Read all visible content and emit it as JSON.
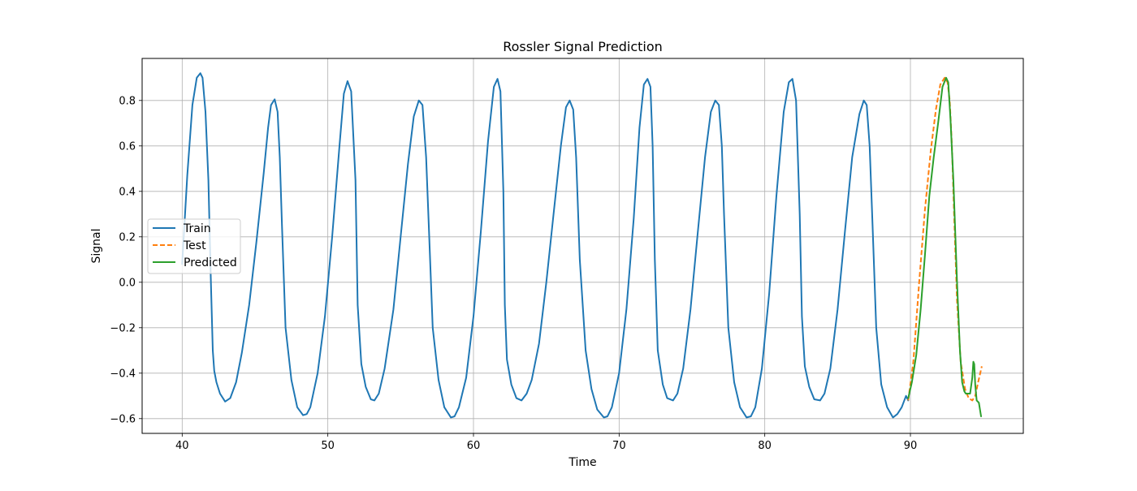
{
  "chart_data": {
    "type": "line",
    "title": "Rossler Signal Prediction",
    "xlabel": "Time",
    "ylabel": "Signal",
    "xlim": [
      37.25,
      97.75
    ],
    "ylim": [
      -0.665,
      0.985
    ],
    "xticks": [
      40,
      50,
      60,
      70,
      80,
      90
    ],
    "yticks": [
      -0.6,
      -0.4,
      -0.2,
      0.0,
      0.2,
      0.4,
      0.6,
      0.8
    ],
    "ytick_labels": [
      "−0.6",
      "−0.4",
      "−0.2",
      "0.0",
      "0.2",
      "0.4",
      "0.6",
      "0.8"
    ],
    "grid": true,
    "legend_position": "center-left",
    "series": [
      {
        "name": "Train",
        "color": "#1f77b4",
        "style": "solid",
        "x": [
          40.0,
          40.35,
          40.7,
          41.0,
          41.25,
          41.4,
          41.6,
          41.8,
          41.95,
          42.1,
          42.2,
          42.35,
          42.6,
          42.95,
          43.3,
          43.7,
          44.1,
          44.6,
          45.1,
          45.6,
          45.9,
          46.1,
          46.35,
          46.55,
          46.7,
          46.85,
          47.1,
          47.5,
          47.9,
          48.3,
          48.55,
          48.8,
          49.3,
          49.8,
          50.3,
          50.8,
          51.1,
          51.35,
          51.6,
          51.9,
          52.05,
          52.3,
          52.6,
          52.95,
          53.2,
          53.5,
          53.9,
          54.5,
          55.0,
          55.5,
          55.9,
          56.25,
          56.5,
          56.75,
          56.95,
          57.2,
          57.6,
          58.0,
          58.45,
          58.7,
          59.0,
          59.5,
          60.0,
          60.5,
          61.0,
          61.4,
          61.65,
          61.85,
          62.05,
          62.15,
          62.3,
          62.6,
          62.95,
          63.3,
          63.65,
          64.0,
          64.5,
          65.0,
          65.5,
          66.0,
          66.35,
          66.6,
          66.85,
          67.05,
          67.3,
          67.7,
          68.1,
          68.5,
          68.95,
          69.2,
          69.5,
          70.0,
          70.5,
          71.0,
          71.4,
          71.7,
          71.95,
          72.15,
          72.3,
          72.45,
          72.65,
          73.0,
          73.3,
          73.7,
          74.0,
          74.4,
          74.9,
          75.4,
          75.9,
          76.3,
          76.6,
          76.85,
          77.05,
          77.2,
          77.5,
          77.9,
          78.3,
          78.75,
          79.05,
          79.35,
          79.8,
          80.3,
          80.8,
          81.3,
          81.65,
          81.9,
          82.15,
          82.4,
          82.55,
          82.75,
          83.05,
          83.4,
          83.8,
          84.1,
          84.5,
          85.0,
          85.5,
          86.0,
          86.5,
          86.8,
          87.0,
          87.2,
          87.4,
          87.65,
          88.0,
          88.4,
          88.8,
          89.1,
          89.4,
          89.7,
          89.85
        ],
        "y": [
          0.08,
          0.47,
          0.78,
          0.9,
          0.92,
          0.9,
          0.75,
          0.45,
          0.05,
          -0.3,
          -0.39,
          -0.44,
          -0.49,
          -0.525,
          -0.51,
          -0.44,
          -0.31,
          -0.1,
          0.18,
          0.48,
          0.68,
          0.78,
          0.805,
          0.75,
          0.55,
          0.25,
          -0.2,
          -0.43,
          -0.55,
          -0.585,
          -0.58,
          -0.55,
          -0.4,
          -0.15,
          0.2,
          0.6,
          0.83,
          0.885,
          0.84,
          0.45,
          -0.1,
          -0.36,
          -0.46,
          -0.515,
          -0.52,
          -0.49,
          -0.38,
          -0.12,
          0.2,
          0.52,
          0.73,
          0.8,
          0.78,
          0.55,
          0.22,
          -0.2,
          -0.43,
          -0.55,
          -0.595,
          -0.59,
          -0.55,
          -0.42,
          -0.15,
          0.22,
          0.62,
          0.86,
          0.895,
          0.84,
          0.4,
          -0.1,
          -0.34,
          -0.45,
          -0.51,
          -0.52,
          -0.49,
          -0.43,
          -0.27,
          0.0,
          0.3,
          0.6,
          0.77,
          0.8,
          0.76,
          0.55,
          0.1,
          -0.3,
          -0.47,
          -0.56,
          -0.595,
          -0.59,
          -0.55,
          -0.4,
          -0.12,
          0.28,
          0.68,
          0.87,
          0.895,
          0.86,
          0.6,
          0.1,
          -0.3,
          -0.45,
          -0.51,
          -0.52,
          -0.49,
          -0.38,
          -0.12,
          0.22,
          0.55,
          0.75,
          0.8,
          0.78,
          0.6,
          0.3,
          -0.2,
          -0.44,
          -0.55,
          -0.595,
          -0.59,
          -0.55,
          -0.38,
          -0.05,
          0.38,
          0.75,
          0.88,
          0.895,
          0.8,
          0.3,
          -0.15,
          -0.37,
          -0.46,
          -0.515,
          -0.52,
          -0.49,
          -0.38,
          -0.12,
          0.22,
          0.55,
          0.74,
          0.8,
          0.78,
          0.6,
          0.25,
          -0.2,
          -0.45,
          -0.55,
          -0.595,
          -0.58,
          -0.55,
          -0.5,
          -0.52
        ]
      },
      {
        "name": "Test",
        "color": "#ff7f0e",
        "style": "dashed",
        "x": [
          89.85,
          90.2,
          90.6,
          91.0,
          91.4,
          91.75,
          92.05,
          92.35,
          92.55,
          92.7,
          92.85,
          93.0,
          93.2,
          93.45,
          93.75,
          94.0,
          94.25,
          94.45,
          94.65,
          94.9
        ],
        "y": [
          -0.52,
          -0.35,
          0.0,
          0.32,
          0.58,
          0.76,
          0.87,
          0.9,
          0.88,
          0.8,
          0.6,
          0.3,
          -0.08,
          -0.35,
          -0.47,
          -0.51,
          -0.52,
          -0.5,
          -0.44,
          -0.37
        ]
      },
      {
        "name": "Predicted",
        "color": "#2ca02c",
        "style": "solid",
        "x": [
          89.85,
          90.1,
          90.4,
          90.7,
          91.0,
          91.3,
          91.6,
          91.9,
          92.2,
          92.45,
          92.6,
          92.75,
          92.95,
          93.2,
          93.4,
          93.55,
          93.7,
          93.8,
          93.95,
          94.1,
          94.25,
          94.32,
          94.38,
          94.45,
          94.55,
          94.7,
          94.85
        ],
        "y": [
          -0.51,
          -0.44,
          -0.32,
          -0.12,
          0.12,
          0.38,
          0.55,
          0.7,
          0.86,
          0.9,
          0.88,
          0.72,
          0.45,
          0.0,
          -0.3,
          -0.44,
          -0.48,
          -0.49,
          -0.49,
          -0.49,
          -0.42,
          -0.35,
          -0.36,
          -0.45,
          -0.52,
          -0.53,
          -0.59
        ]
      }
    ]
  }
}
